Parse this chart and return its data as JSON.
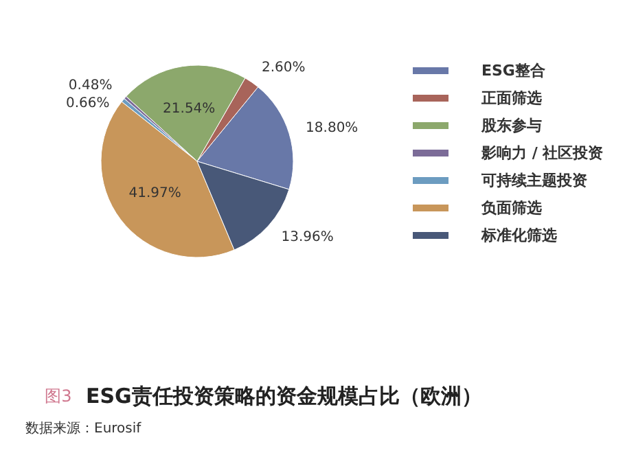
{
  "chart_data": {
    "type": "pie",
    "title": "ESG责任投资策略的资金规模占比（欧洲）",
    "categories": [
      "ESG整合",
      "正面筛选",
      "股东参与",
      "影响力 / 社区投资",
      "可持续主题投资",
      "负面筛选",
      "标准化筛选"
    ],
    "values": [
      18.8,
      2.6,
      21.54,
      0.48,
      0.66,
      41.97,
      13.96
    ],
    "value_labels": [
      "18.80%",
      "2.60%",
      "21.54%",
      "0.48%",
      "0.66%",
      "41.97%",
      "13.96%"
    ],
    "colors": [
      "#6878a8",
      "#a8645a",
      "#8ca86c",
      "#7c6c98",
      "#6c9cc0",
      "#c8965a",
      "#485878"
    ],
    "legend": "right",
    "annotations": [
      "图3",
      "数据来源：Eurosif"
    ]
  }
}
